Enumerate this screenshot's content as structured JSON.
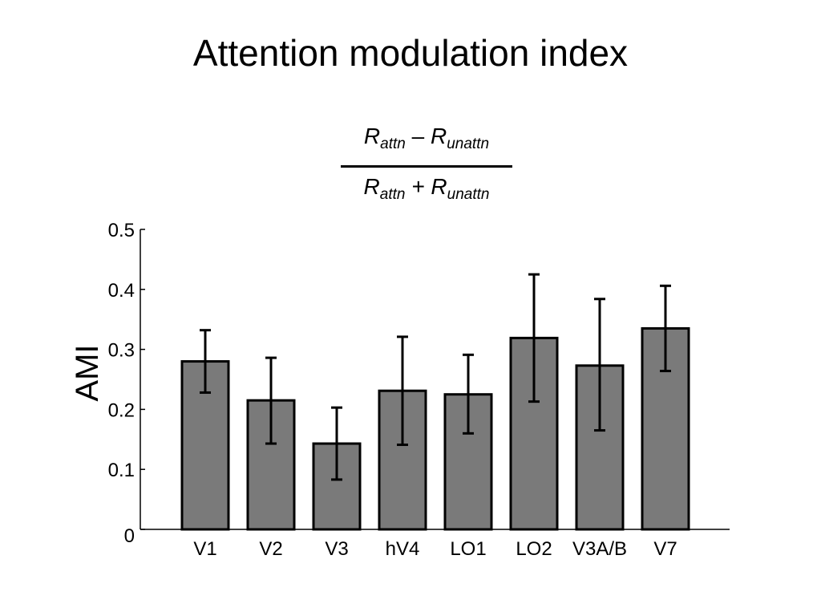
{
  "slide": {
    "title": "Attention modulation index"
  },
  "formula": {
    "numerator": {
      "r1": "R",
      "s1": "attn",
      "op": "–",
      "r2": "R",
      "s2": "unattn"
    },
    "denominator": {
      "r1": "R",
      "s1": "attn",
      "op": "+",
      "r2": "R",
      "s2": "unattn"
    }
  },
  "chart_data": {
    "type": "bar",
    "title": "",
    "xlabel": "",
    "ylabel": "AMI",
    "ylim": [
      0,
      0.5
    ],
    "yticks": [
      0,
      0.1,
      0.2,
      0.3,
      0.4,
      0.5
    ],
    "ytick_labels": [
      "0",
      "0.1",
      "0.2",
      "0.3",
      "0.4",
      "0.5"
    ],
    "categories": [
      "V1",
      "V2",
      "V3",
      "hV4",
      "LO1",
      "LO2",
      "V3A/B",
      "V7"
    ],
    "values": [
      0.28,
      0.215,
      0.143,
      0.231,
      0.225,
      0.319,
      0.273,
      0.335
    ],
    "error_low": [
      0.228,
      0.143,
      0.083,
      0.141,
      0.16,
      0.213,
      0.165,
      0.264
    ],
    "error_high": [
      0.332,
      0.286,
      0.203,
      0.321,
      0.291,
      0.425,
      0.384,
      0.406
    ],
    "bar_color": "#7a7a7a",
    "edge_color": "#000000",
    "grid": false,
    "legend": "none"
  }
}
